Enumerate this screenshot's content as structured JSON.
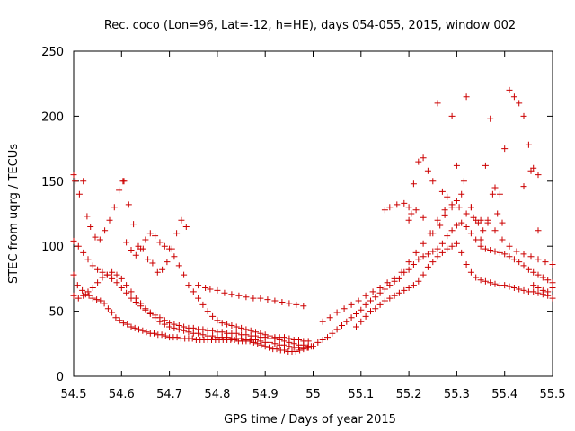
{
  "chart_data": {
    "type": "scatter",
    "title": "Rec. coco (Lon=96, Lat=-12, h=HE), days 054-055, 2015, window 002",
    "xlabel": "GPS time / Days of year 2015",
    "ylabel": "STEC from uqrg / TECUs",
    "xlim": [
      54.5,
      55.5
    ],
    "ylim": [
      0,
      250
    ],
    "xticks": [
      "54.5",
      "54.6",
      "54.7",
      "54.8",
      "54.9",
      "55",
      "55.1",
      "55.2",
      "55.3",
      "55.4",
      "55.5"
    ],
    "yticks": [
      "0",
      "50",
      "100",
      "150",
      "200",
      "250"
    ],
    "marker": "+",
    "grid": false,
    "colors": {
      "points": "#cc0000",
      "axes": "#000000"
    },
    "series": [
      {
        "name": "",
        "x": [
          54.5,
          54.508,
          54.518,
          54.525,
          54.532,
          54.54,
          54.548,
          54.556,
          54.564,
          54.572,
          54.58,
          54.588,
          54.596,
          54.604,
          54.612,
          54.62,
          54.628,
          54.636,
          54.644,
          54.652,
          54.66,
          54.668,
          54.676,
          54.684,
          54.692,
          54.7,
          54.708,
          54.716,
          54.724,
          54.732,
          54.74,
          54.748,
          54.756,
          54.764,
          54.772,
          54.78,
          54.788,
          54.796,
          54.804,
          54.812,
          54.82,
          54.828,
          54.836,
          54.844,
          54.852,
          54.86,
          54.868,
          54.876,
          54.884,
          54.892,
          54.9,
          54.908,
          54.916,
          54.924,
          54.932,
          54.94,
          54.948,
          54.956,
          54.964,
          54.972,
          54.98,
          54.988,
          54.996,
          54.5,
          54.51,
          54.52,
          54.53,
          54.54,
          54.55,
          54.56,
          54.57,
          54.58,
          54.59,
          54.6,
          54.61,
          54.62,
          54.63,
          54.64,
          54.65,
          54.66,
          54.67,
          54.68,
          54.69,
          54.7,
          54.71,
          54.72,
          54.73,
          54.74,
          54.75,
          54.76,
          54.77,
          54.78,
          54.79,
          54.8,
          54.81,
          54.82,
          54.83,
          54.84,
          54.85,
          54.86,
          54.87,
          54.88,
          54.89,
          54.9,
          54.91,
          54.92,
          54.93,
          54.94,
          54.95,
          54.96,
          54.97,
          54.98,
          54.99,
          54.5,
          54.51,
          54.52,
          54.53,
          54.54,
          54.55,
          54.56,
          54.57,
          54.58,
          54.59,
          54.6,
          54.61,
          54.62,
          54.63,
          54.64,
          54.65,
          54.66,
          54.67,
          54.68,
          54.69,
          54.7,
          54.71,
          54.72,
          54.73,
          54.74,
          54.75,
          54.76,
          54.77,
          54.78,
          54.79,
          54.8,
          54.81,
          54.82,
          54.83,
          54.84,
          54.85,
          54.86,
          54.87,
          54.88,
          54.89,
          54.9,
          54.91,
          54.92,
          54.93,
          54.94,
          54.95,
          54.96,
          54.97,
          54.98,
          54.99,
          54.5,
          54.503,
          54.512,
          54.52,
          54.528,
          54.535,
          54.545,
          54.555,
          54.565,
          54.575,
          54.585,
          54.595,
          54.605,
          54.615,
          54.625,
          54.635,
          54.645,
          54.655,
          54.665,
          54.675,
          54.685,
          54.695,
          54.705,
          54.715,
          54.725,
          54.735,
          54.603,
          54.61,
          54.62,
          54.63,
          54.64,
          54.65,
          54.66,
          54.67,
          54.68,
          54.69,
          54.7,
          54.71,
          54.72,
          54.73,
          54.74,
          54.75,
          54.76,
          54.77,
          54.78,
          54.79,
          54.8,
          54.81,
          54.82,
          54.83,
          54.84,
          54.85,
          54.86,
          54.87,
          54.88,
          54.89,
          54.9,
          54.91,
          54.92,
          54.93,
          54.94,
          54.95,
          54.96,
          54.97,
          54.98,
          54.99,
          54.76,
          54.775,
          54.785,
          54.8,
          54.815,
          54.83,
          54.845,
          54.86,
          54.875,
          54.89,
          54.905,
          54.92,
          54.935,
          54.95,
          54.965,
          54.98,
          55.0,
          55.01,
          55.02,
          55.03,
          55.04,
          55.05,
          55.06,
          55.07,
          55.08,
          55.09,
          55.1,
          55.11,
          55.12,
          55.13,
          55.14,
          55.15,
          55.16,
          55.17,
          55.18,
          55.19,
          55.2,
          55.21,
          55.22,
          55.23,
          55.24,
          55.25,
          55.26,
          55.27,
          55.28,
          55.29,
          55.3,
          55.31,
          55.32,
          55.33,
          55.34,
          55.35,
          55.36,
          55.37,
          55.38,
          55.39,
          55.4,
          55.41,
          55.42,
          55.43,
          55.44,
          55.45,
          55.46,
          55.47,
          55.48,
          55.49,
          55.5,
          55.02,
          55.035,
          55.05,
          55.065,
          55.08,
          55.095,
          55.11,
          55.125,
          55.14,
          55.155,
          55.17,
          55.185,
          55.2,
          55.215,
          55.23,
          55.245,
          55.26,
          55.275,
          55.29,
          55.305,
          55.32,
          55.335,
          55.35,
          55.365,
          55.38,
          55.395,
          55.41,
          55.425,
          55.44,
          55.455,
          55.47,
          55.485,
          55.5,
          55.09,
          55.1,
          55.11,
          55.12,
          55.13,
          55.14,
          55.15,
          55.16,
          55.17,
          55.18,
          55.19,
          55.2,
          55.21,
          55.22,
          55.23,
          55.24,
          55.25,
          55.26,
          55.27,
          55.28,
          55.29,
          55.3,
          55.31,
          55.32,
          55.33,
          55.34,
          55.35,
          55.36,
          55.37,
          55.38,
          55.39,
          55.4,
          55.41,
          55.42,
          55.43,
          55.44,
          55.45,
          55.46,
          55.47,
          55.48,
          55.49,
          55.5,
          55.15,
          55.16,
          55.175,
          55.19,
          55.2,
          55.205,
          55.21,
          55.22,
          55.23,
          55.24,
          55.25,
          55.26,
          55.27,
          55.28,
          55.29,
          55.3,
          55.31,
          55.32,
          55.33,
          55.34,
          55.35,
          55.36,
          55.37,
          55.38,
          55.39,
          55.4,
          55.41,
          55.42,
          55.43,
          55.44,
          55.45,
          55.46,
          55.47,
          55.2,
          55.215,
          55.23,
          55.25,
          55.265,
          55.275,
          55.29,
          55.3,
          55.315,
          55.33,
          55.345,
          55.355,
          55.365,
          55.375,
          55.385,
          55.395,
          55.44,
          55.455,
          55.47,
          55.46,
          55.47,
          55.48,
          55.49,
          55.5
        ],
        "y": [
          78,
          70,
          66,
          63,
          62,
          60,
          59,
          58,
          56,
          52,
          49,
          45,
          43,
          41,
          40,
          38,
          37,
          36,
          35,
          34,
          33,
          33,
          32,
          32,
          31,
          30,
          30,
          30,
          29,
          29,
          29,
          29,
          28,
          28,
          28,
          28,
          28,
          28,
          28,
          28,
          28,
          28,
          28,
          27,
          27,
          27,
          27,
          26,
          25,
          24,
          23,
          22,
          21,
          21,
          20,
          20,
          19,
          19,
          19,
          20,
          21,
          22,
          23,
          104,
          100,
          95,
          90,
          85,
          82,
          80,
          78,
          75,
          72,
          68,
          64,
          60,
          57,
          54,
          51,
          49,
          47,
          45,
          43,
          41,
          40,
          39,
          38,
          37,
          37,
          36,
          36,
          35,
          35,
          34,
          34,
          33,
          33,
          33,
          32,
          32,
          31,
          31,
          30,
          30,
          29,
          29,
          28,
          27,
          26,
          25,
          24,
          24,
          23,
          62,
          60,
          62,
          65,
          68,
          72,
          76,
          78,
          80,
          78,
          75,
          70,
          65,
          60,
          56,
          52,
          48,
          45,
          42,
          40,
          38,
          37,
          36,
          35,
          34,
          33,
          33,
          32,
          31,
          31,
          30,
          30,
          30,
          29,
          29,
          29,
          28,
          28,
          28,
          27,
          26,
          26,
          25,
          24,
          24,
          23,
          22,
          22,
          22,
          22,
          155,
          150,
          140,
          150,
          123,
          115,
          107,
          105,
          112,
          120,
          130,
          143,
          150,
          132,
          117,
          100,
          98,
          90,
          87,
          80,
          82,
          88,
          98,
          110,
          120,
          115,
          150,
          103,
          97,
          93,
          98,
          105,
          110,
          108,
          103,
          100,
          98,
          92,
          85,
          78,
          70,
          65,
          60,
          55,
          50,
          46,
          43,
          41,
          40,
          39,
          38,
          37,
          36,
          35,
          34,
          33,
          32,
          31,
          30,
          30,
          30,
          29,
          28,
          28,
          27,
          27,
          70,
          68,
          67,
          66,
          64,
          63,
          62,
          61,
          60,
          60,
          59,
          58,
          57,
          56,
          55,
          54,
          23,
          26,
          28,
          30,
          33,
          36,
          39,
          42,
          45,
          48,
          51,
          55,
          58,
          61,
          64,
          67,
          70,
          73,
          75,
          80,
          82,
          86,
          90,
          92,
          94,
          96,
          98,
          102,
          108,
          112,
          116,
          118,
          115,
          110,
          105,
          100,
          98,
          97,
          96,
          95,
          94,
          92,
          90,
          88,
          85,
          82,
          80,
          78,
          76,
          74,
          72,
          42,
          45,
          49,
          52,
          55,
          58,
          62,
          65,
          68,
          72,
          75,
          80,
          88,
          95,
          102,
          110,
          120,
          128,
          132,
          130,
          125,
          122,
          120,
          118,
          112,
          105,
          100,
          96,
          94,
          92,
          90,
          88,
          86,
          38,
          42,
          46,
          50,
          52,
          55,
          58,
          60,
          62,
          64,
          66,
          68,
          70,
          73,
          78,
          84,
          88,
          92,
          95,
          98,
          100,
          102,
          95,
          86,
          80,
          76,
          74,
          73,
          72,
          71,
          70,
          70,
          69,
          68,
          67,
          66,
          65,
          65,
          64,
          63,
          62,
          60,
          128,
          130,
          132,
          133,
          130,
          125,
          148,
          165,
          168,
          158,
          150,
          210,
          142,
          138,
          130,
          135,
          140,
          215,
          130,
          120,
          105,
          162,
          198,
          145,
          140,
          175,
          220,
          215,
          210,
          200,
          178,
          160,
          155,
          120,
          128,
          122,
          110,
          116,
          124,
          200,
          162,
          150,
          130,
          118,
          112,
          120,
          140,
          125,
          118,
          146,
          158,
          112,
          70,
          68,
          66,
          65,
          68
        ]
      }
    ]
  }
}
